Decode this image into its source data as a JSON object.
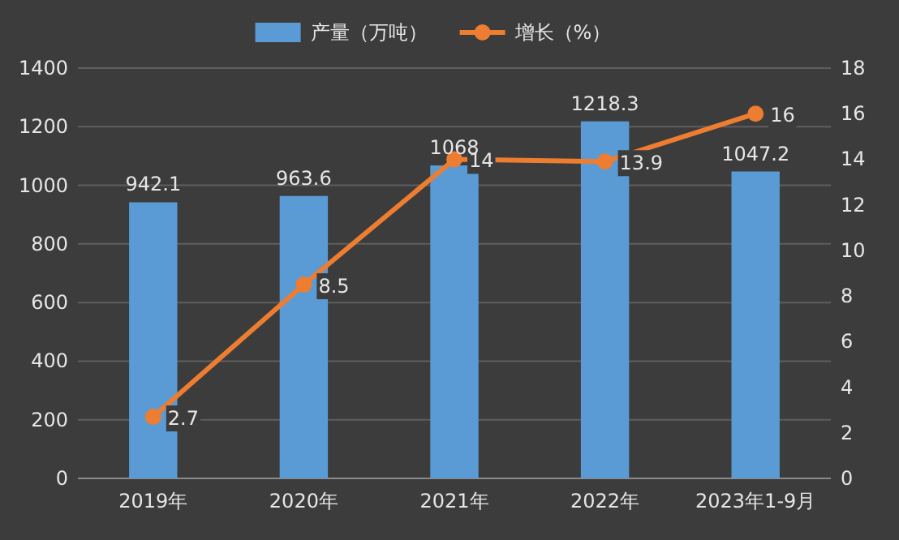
{
  "chart_data": {
    "type": "bar",
    "categories": [
      "2019年",
      "2020年",
      "2021年",
      "2022年",
      "2023年1-9月"
    ],
    "series": [
      {
        "name": "产量（万吨）",
        "color": "#5b9bd5",
        "values": [
          942.1,
          963.6,
          1068,
          1218.3,
          1047.2
        ]
      },
      {
        "name": "增长（%）",
        "type": "line",
        "axis": "y2",
        "color": "#ed7d31",
        "values": [
          2.7,
          8.5,
          14,
          13.9,
          16
        ]
      }
    ],
    "ylim": [
      0,
      1400
    ],
    "yticks": [
      0,
      200,
      400,
      600,
      800,
      1000,
      1200,
      1400
    ],
    "y2lim": [
      0,
      18
    ],
    "y2ticks": [
      0,
      2,
      4,
      6,
      8,
      10,
      12,
      14,
      16,
      18
    ],
    "grid": "y",
    "legend": "top",
    "marker": "circle",
    "line_style": "solid",
    "data_labels": true
  }
}
